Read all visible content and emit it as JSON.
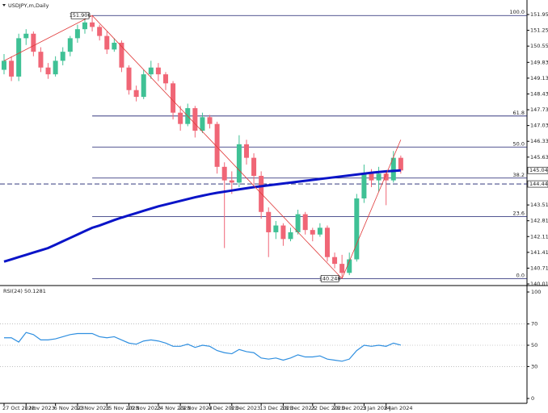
{
  "chart_data": [
    {
      "type": "candlestick",
      "title": "USDJPY,m,Daily",
      "categories": [
        "27 Oct 2023",
        null,
        null,
        "1 Nov 2023",
        null,
        null,
        null,
        "6 Nov 2023",
        null,
        null,
        "10 Nov 2023",
        null,
        null,
        null,
        "15 Nov 2023",
        null,
        null,
        "20 Nov 2023",
        null,
        null,
        null,
        "24 Nov 2023",
        null,
        null,
        "29 Nov 2023",
        null,
        null,
        null,
        "4 Dec 2023",
        null,
        null,
        "8 Dec 2023",
        null,
        null,
        null,
        "13 Dec 2023",
        null,
        null,
        "18 Dec 2023",
        null,
        null,
        null,
        "22 Dec 2023",
        null,
        null,
        "28 Dec 2023",
        null,
        null,
        null,
        "3 Jan 2024",
        null,
        null,
        "8 Jan 2024",
        null,
        null
      ],
      "ohlc": [
        [
          149.5,
          150.2,
          149.3,
          149.9
        ],
        [
          149.9,
          150.1,
          149.0,
          149.2
        ],
        [
          149.2,
          151.1,
          149.0,
          150.9
        ],
        [
          150.9,
          151.3,
          150.6,
          151.1
        ],
        [
          151.1,
          151.2,
          150.1,
          150.3
        ],
        [
          150.3,
          150.5,
          149.4,
          149.6
        ],
        [
          149.6,
          149.8,
          149.1,
          149.3
        ],
        [
          149.3,
          150.1,
          149.2,
          149.9
        ],
        [
          149.9,
          150.5,
          149.7,
          150.3
        ],
        [
          150.3,
          151.0,
          150.1,
          150.9
        ],
        [
          150.9,
          151.5,
          150.7,
          151.3
        ],
        [
          151.3,
          151.8,
          151.1,
          151.6
        ],
        [
          151.6,
          151.906,
          151.2,
          151.4
        ],
        [
          151.4,
          151.5,
          150.8,
          151.0
        ],
        [
          151.0,
          151.2,
          150.2,
          150.4
        ],
        [
          150.4,
          150.9,
          150.3,
          150.7
        ],
        [
          150.7,
          150.8,
          149.4,
          149.6
        ],
        [
          149.6,
          149.7,
          148.4,
          148.6
        ],
        [
          148.6,
          148.8,
          148.1,
          148.3
        ],
        [
          148.3,
          149.5,
          148.2,
          149.3
        ],
        [
          149.3,
          149.9,
          149.1,
          149.6
        ],
        [
          149.6,
          149.8,
          149.0,
          149.3
        ],
        [
          149.3,
          149.4,
          148.6,
          148.9
        ],
        [
          148.9,
          149.0,
          147.3,
          147.6
        ],
        [
          147.6,
          147.9,
          146.8,
          147.1
        ],
        [
          147.1,
          148.0,
          147.0,
          147.8
        ],
        [
          147.8,
          147.9,
          146.5,
          146.8
        ],
        [
          146.8,
          147.6,
          146.7,
          147.4
        ],
        [
          147.4,
          147.5,
          146.9,
          147.1
        ],
        [
          147.1,
          147.2,
          144.9,
          145.2
        ],
        [
          145.2,
          145.4,
          141.6,
          144.6
        ],
        [
          144.6,
          145.0,
          144.0,
          144.5
        ],
        [
          144.5,
          146.6,
          144.3,
          146.2
        ],
        [
          146.2,
          146.4,
          145.3,
          145.6
        ],
        [
          145.6,
          145.8,
          144.4,
          144.8
        ],
        [
          144.8,
          145.0,
          142.9,
          143.2
        ],
        [
          143.2,
          143.4,
          141.2,
          142.3
        ],
        [
          142.3,
          142.8,
          142.0,
          142.6
        ],
        [
          142.6,
          142.7,
          141.7,
          142.0
        ],
        [
          142.0,
          142.5,
          141.9,
          142.3
        ],
        [
          142.3,
          143.3,
          142.2,
          143.1
        ],
        [
          143.1,
          143.2,
          142.2,
          142.4
        ],
        [
          142.4,
          142.5,
          141.9,
          142.2
        ],
        [
          142.2,
          142.7,
          142.1,
          142.5
        ],
        [
          142.5,
          142.6,
          141.0,
          141.2
        ],
        [
          141.2,
          141.4,
          140.7,
          140.9
        ],
        [
          140.9,
          141.3,
          140.248,
          140.5
        ],
        [
          140.5,
          141.4,
          140.4,
          141.1
        ],
        [
          141.1,
          144.0,
          141.0,
          143.8
        ],
        [
          143.8,
          145.3,
          143.6,
          144.9
        ],
        [
          144.9,
          145.1,
          144.3,
          144.6
        ],
        [
          144.6,
          145.2,
          144.1,
          144.9
        ],
        [
          144.9,
          145.0,
          143.5,
          144.6
        ],
        [
          144.6,
          145.9,
          144.5,
          145.6
        ],
        [
          145.6,
          145.7,
          144.9,
          145.04
        ]
      ],
      "up_color": "#3fc195",
      "down_color": "#f06676",
      "ma": {
        "color": "#0a14c8",
        "values": [
          141.0,
          141.1,
          141.2,
          141.3,
          141.4,
          141.5,
          141.6,
          141.75,
          141.9,
          142.05,
          142.2,
          142.35,
          142.5,
          142.6,
          142.72,
          142.84,
          142.95,
          143.05,
          143.15,
          143.25,
          143.35,
          143.45,
          143.53,
          143.61,
          143.69,
          143.77,
          143.85,
          143.92,
          143.99,
          144.05,
          144.1,
          144.15,
          144.2,
          144.25,
          144.3,
          144.34,
          144.38,
          144.42,
          144.46,
          144.5,
          144.54,
          144.58,
          144.62,
          144.66,
          144.7,
          144.74,
          144.78,
          144.82,
          144.86,
          144.9,
          144.94,
          144.97,
          145.0,
          145.02,
          145.04
        ]
      },
      "zigzag": {
        "color": "#e03a3a",
        "points": [
          {
            "index": 0,
            "price": 149.9
          },
          {
            "index": 12,
            "price": 151.906
          },
          {
            "index": 46,
            "price": 140.248
          },
          {
            "index": 54,
            "price": 146.4
          }
        ]
      },
      "fibonacci": {
        "color": "#1a1f6e",
        "start_index": 12,
        "levels": [
          {
            "label": "100.0",
            "price": 151.906
          },
          {
            "label": "61.8",
            "price": 147.453
          },
          {
            "label": "50.0",
            "price": 146.077
          },
          {
            "label": "38.2",
            "price": 144.701
          },
          {
            "label": "23.6",
            "price": 143.0
          },
          {
            "label": "0.0",
            "price": 140.248
          }
        ]
      },
      "extremes": [
        {
          "index": 12,
          "value": 151.906,
          "label": "151.906"
        },
        {
          "index": 46,
          "value": 140.248,
          "label": "140.248"
        }
      ],
      "price_lines": [
        {
          "value": 145.043,
          "label": "145.043",
          "style": "solid"
        },
        {
          "value": 144.44,
          "label": "144.440",
          "style": "dashed"
        }
      ],
      "ylim": [
        140.01,
        151.95
      ],
      "yticks": [
        {
          "value": 140.01,
          "label": "140.010"
        },
        {
          "value": 140.71,
          "label": "140.710"
        },
        {
          "value": 141.41,
          "label": "141.410"
        },
        {
          "value": 142.11,
          "label": "142.110"
        },
        {
          "value": 142.81,
          "label": "142.810"
        },
        {
          "value": 143.51,
          "label": "143.510"
        },
        {
          "value": 145.63,
          "label": "145.630"
        },
        {
          "value": 146.33,
          "label": "146.330"
        },
        {
          "value": 147.03,
          "label": "147.030"
        },
        {
          "value": 147.73,
          "label": "147.730"
        },
        {
          "value": 148.43,
          "label": "148.430"
        },
        {
          "value": 149.13,
          "label": "149.130"
        },
        {
          "value": 149.83,
          "label": "149.830"
        },
        {
          "value": 150.55,
          "label": "150.550"
        },
        {
          "value": 151.25,
          "label": "151.250"
        },
        {
          "value": 151.95,
          "label": "151.950"
        }
      ]
    },
    {
      "type": "line",
      "title": "RSI(24) 50.1281",
      "color": "#2f8fe0",
      "values": [
        57,
        57,
        53,
        62,
        60,
        55,
        55,
        56,
        58,
        60,
        61,
        61,
        61,
        58,
        57,
        58,
        55,
        52,
        51,
        54,
        55,
        54,
        52,
        49,
        49,
        51,
        48,
        50,
        49,
        45,
        43,
        42,
        46,
        44,
        43,
        38,
        37,
        38,
        36,
        38,
        41,
        39,
        39,
        40,
        37,
        36,
        35,
        37,
        45,
        50,
        49,
        50,
        49,
        52,
        50.1281
      ],
      "ylim": [
        0,
        100
      ],
      "yticks": [
        0,
        30,
        50,
        70,
        100
      ],
      "grid": true
    }
  ]
}
